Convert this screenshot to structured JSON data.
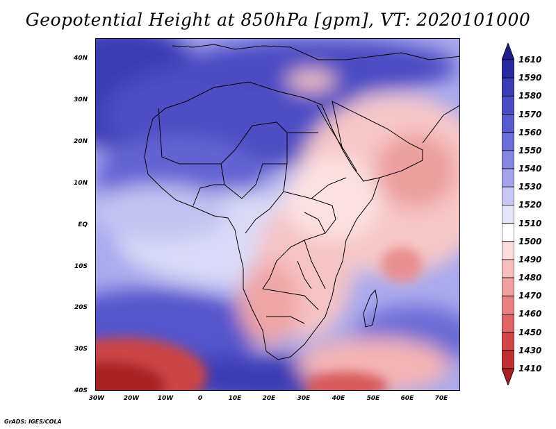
{
  "title": "Geopotential Height at 850hPa [gpm], VT: 2020101000",
  "footer": "GrADS: IGES/COLA",
  "y_axis_labels": [
    "40N",
    "30N",
    "20N",
    "10N",
    "EQ",
    "10S",
    "20S",
    "30S",
    "40S"
  ],
  "x_axis_labels": [
    "30W",
    "20W",
    "10W",
    "0",
    "10E",
    "20E",
    "30E",
    "40E",
    "50E",
    "60E",
    "70E"
  ],
  "colorbar": {
    "levels": [
      "1610",
      "1590",
      "1580",
      "1570",
      "1560",
      "1550",
      "1540",
      "1530",
      "1520",
      "1510",
      "1500",
      "1490",
      "1480",
      "1470",
      "1460",
      "1450",
      "1430",
      "1410"
    ],
    "colors": [
      "#1e1e8c",
      "#2a2aa0",
      "#3c3cb4",
      "#4b4bc3",
      "#5a5ad0",
      "#6e6ed9",
      "#8585e2",
      "#a3a3ec",
      "#c8c8f5",
      "#e6e6fb",
      "#ffffff",
      "#fbdcdc",
      "#f6bebe",
      "#f0a0a0",
      "#e88282",
      "#e06464",
      "#d24646",
      "#c03030",
      "#a81e1e"
    ]
  }
}
